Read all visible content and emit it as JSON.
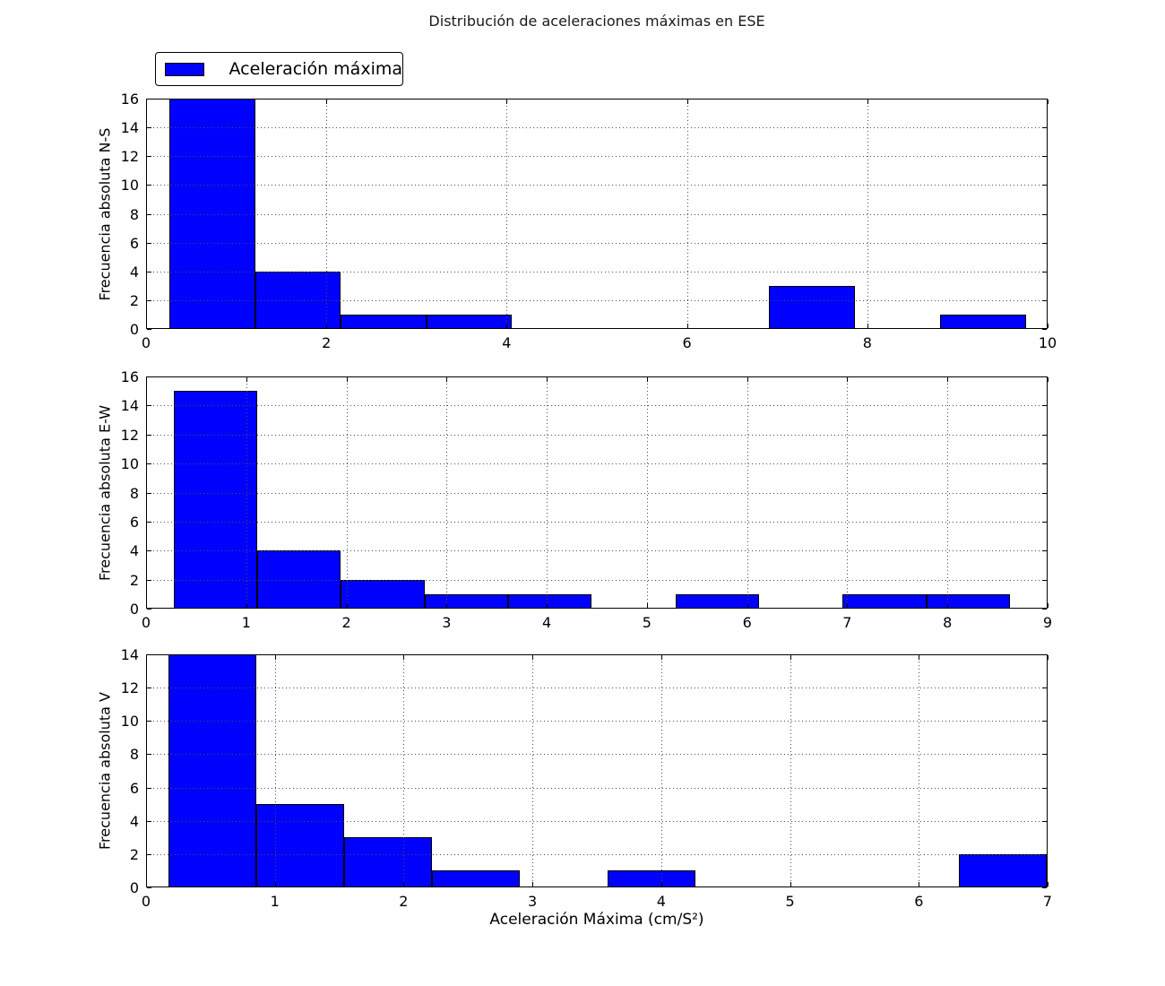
{
  "title": "Distribución de aceleraciones máximas en ESE",
  "legend": {
    "label": "Aceleración máxima",
    "swatch_color": "#0000ff"
  },
  "xlabel": "Aceleración Máxima (cm/S²)",
  "colors": {
    "bar_fill": "#0000ff",
    "bar_edge": "#000000",
    "grid": "#4d4d4d",
    "frame": "#000000",
    "background": "#ffffff"
  },
  "chart_data": [
    {
      "type": "bar",
      "subtype": "histogram",
      "title": "",
      "ylabel": "Frecuencia absoluta N-S",
      "xlabel": "",
      "xlim": [
        0,
        10
      ],
      "ylim": [
        0,
        16
      ],
      "xticks": [
        0,
        2,
        4,
        6,
        8,
        10
      ],
      "yticks": [
        0,
        2,
        4,
        6,
        8,
        10,
        12,
        14,
        16
      ],
      "grid": true,
      "legend_entry": "Aceleración máxima",
      "bin_edges": [
        0.26,
        1.21,
        2.16,
        3.11,
        4.06,
        5.01,
        5.96,
        6.91,
        7.86,
        8.81,
        9.76
      ],
      "counts": [
        16,
        4,
        1,
        1,
        0,
        0,
        0,
        3,
        0,
        1
      ]
    },
    {
      "type": "bar",
      "subtype": "histogram",
      "title": "",
      "ylabel": "Frecuencia absoluta E-W",
      "xlabel": "",
      "xlim": [
        0,
        9
      ],
      "ylim": [
        0,
        16
      ],
      "xticks": [
        0,
        1,
        2,
        3,
        4,
        5,
        6,
        7,
        8,
        9
      ],
      "yticks": [
        0,
        2,
        4,
        6,
        8,
        10,
        12,
        14,
        16
      ],
      "grid": true,
      "legend_entry": "Aceleración máxima",
      "bin_edges": [
        0.275,
        1.11,
        1.945,
        2.78,
        3.615,
        4.45,
        5.285,
        6.12,
        6.955,
        7.79,
        8.625
      ],
      "counts": [
        15,
        4,
        2,
        1,
        1,
        0,
        1,
        0,
        1,
        1
      ]
    },
    {
      "type": "bar",
      "subtype": "histogram",
      "title": "",
      "ylabel": "Frecuencia absoluta V",
      "xlabel": "Aceleración Máxima (cm/S²)",
      "xlim": [
        0,
        7
      ],
      "ylim": [
        0,
        14
      ],
      "xticks": [
        0,
        1,
        2,
        3,
        4,
        5,
        6,
        7
      ],
      "yticks": [
        0,
        2,
        4,
        6,
        8,
        10,
        12,
        14
      ],
      "grid": true,
      "legend_entry": "Aceleración máxima",
      "bin_edges": [
        0.176,
        0.858,
        1.54,
        2.222,
        2.904,
        3.586,
        4.268,
        4.95,
        5.632,
        6.314,
        6.996
      ],
      "counts": [
        14,
        5,
        3,
        1,
        0,
        1,
        0,
        0,
        0,
        2
      ]
    }
  ]
}
